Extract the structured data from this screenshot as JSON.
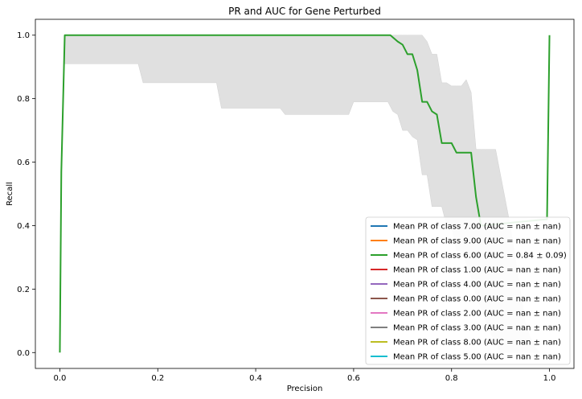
{
  "chart_data": {
    "type": "line",
    "title": "PR and AUC for Gene Perturbed",
    "xlabel": "Precision",
    "ylabel": "Recall",
    "xlim": [
      -0.05,
      1.05
    ],
    "ylim": [
      -0.05,
      1.05
    ],
    "xticks": [
      "0.0",
      "0.2",
      "0.4",
      "0.6",
      "0.8",
      "1.0"
    ],
    "yticks": [
      "0.0",
      "0.2",
      "0.4",
      "0.6",
      "0.8",
      "1.0"
    ],
    "grid": false,
    "legend_position": "bottom-right",
    "series": [
      {
        "name": "Mean PR of class 7.00 (AUC = nan ± nan)",
        "color": "#1f77b4",
        "x": [],
        "y": []
      },
      {
        "name": "Mean PR of class 9.00 (AUC = nan ± nan)",
        "color": "#ff7f0e",
        "x": [],
        "y": []
      },
      {
        "name": "Mean PR of class 6.00 (AUC = 0.84 ± 0.09)",
        "color": "#2ca02c",
        "x": [
          0.0,
          0.003,
          0.01,
          0.1,
          0.2,
          0.3,
          0.4,
          0.5,
          0.6,
          0.675,
          0.69,
          0.7,
          0.71,
          0.72,
          0.73,
          0.74,
          0.75,
          0.76,
          0.77,
          0.78,
          0.79,
          0.8,
          0.81,
          0.82,
          0.83,
          0.84,
          0.85,
          0.86,
          0.995,
          1.0
        ],
        "y": [
          0.0,
          0.57,
          1.0,
          1.0,
          1.0,
          1.0,
          1.0,
          1.0,
          1.0,
          1.0,
          0.98,
          0.97,
          0.94,
          0.94,
          0.89,
          0.79,
          0.79,
          0.76,
          0.75,
          0.66,
          0.66,
          0.66,
          0.63,
          0.63,
          0.63,
          0.63,
          0.49,
          0.4,
          0.42,
          1.0
        ]
      },
      {
        "name": "Mean PR of class 1.00 (AUC = nan ± nan)",
        "color": "#d62728",
        "x": [],
        "y": []
      },
      {
        "name": "Mean PR of class 4.00 (AUC = nan ± nan)",
        "color": "#9467bd",
        "x": [],
        "y": []
      },
      {
        "name": "Mean PR of class 0.00 (AUC = nan ± nan)",
        "color": "#8c564b",
        "x": [],
        "y": []
      },
      {
        "name": "Mean PR of class 2.00 (AUC = nan ± nan)",
        "color": "#e377c2",
        "x": [],
        "y": []
      },
      {
        "name": "Mean PR of class 3.00 (AUC = nan ± nan)",
        "color": "#7f7f7f",
        "x": [],
        "y": []
      },
      {
        "name": "Mean PR of class 8.00 (AUC = nan ± nan)",
        "color": "#bcbd22",
        "x": [],
        "y": []
      },
      {
        "name": "Mean PR of class 5.00 (AUC = nan ± nan)",
        "color": "#17becf",
        "x": [],
        "y": []
      }
    ],
    "band": {
      "color": "#e0e0e0",
      "x": [
        0.01,
        0.16,
        0.17,
        0.32,
        0.33,
        0.45,
        0.46,
        0.56,
        0.57,
        0.59,
        0.6,
        0.67,
        0.68,
        0.69,
        0.7,
        0.71,
        0.72,
        0.73,
        0.74,
        0.75,
        0.76,
        0.77,
        0.78,
        0.79,
        0.8,
        0.81,
        0.82,
        0.83,
        0.84,
        0.85,
        0.86,
        0.87,
        0.88,
        0.89,
        0.9,
        0.91,
        0.92,
        0.93,
        0.94,
        0.95,
        0.96,
        0.97,
        0.98
      ],
      "upper": [
        1.0,
        1.0,
        1.0,
        1.0,
        1.0,
        1.0,
        1.0,
        1.0,
        1.0,
        1.0,
        1.0,
        1.0,
        1.0,
        1.0,
        1.0,
        1.0,
        1.0,
        1.0,
        1.0,
        0.98,
        0.94,
        0.94,
        0.85,
        0.85,
        0.84,
        0.84,
        0.84,
        0.86,
        0.82,
        0.64,
        0.64,
        0.64,
        0.64,
        0.64,
        0.56,
        0.48,
        0.4,
        0.3,
        0.2,
        0.1,
        0.05,
        0.02,
        0.0
      ],
      "lower": [
        0.91,
        0.91,
        0.85,
        0.85,
        0.77,
        0.77,
        0.75,
        0.75,
        0.75,
        0.75,
        0.79,
        0.79,
        0.76,
        0.75,
        0.7,
        0.7,
        0.68,
        0.67,
        0.56,
        0.56,
        0.46,
        0.46,
        0.46,
        0.4,
        0.4,
        0.32,
        0.32,
        0.28,
        0.24,
        0.18,
        0.14,
        0.1,
        0.06,
        0.03,
        0.0,
        0.0,
        0.0,
        0.0,
        0.0,
        0.0,
        0.0,
        0.0,
        0.0
      ]
    }
  }
}
